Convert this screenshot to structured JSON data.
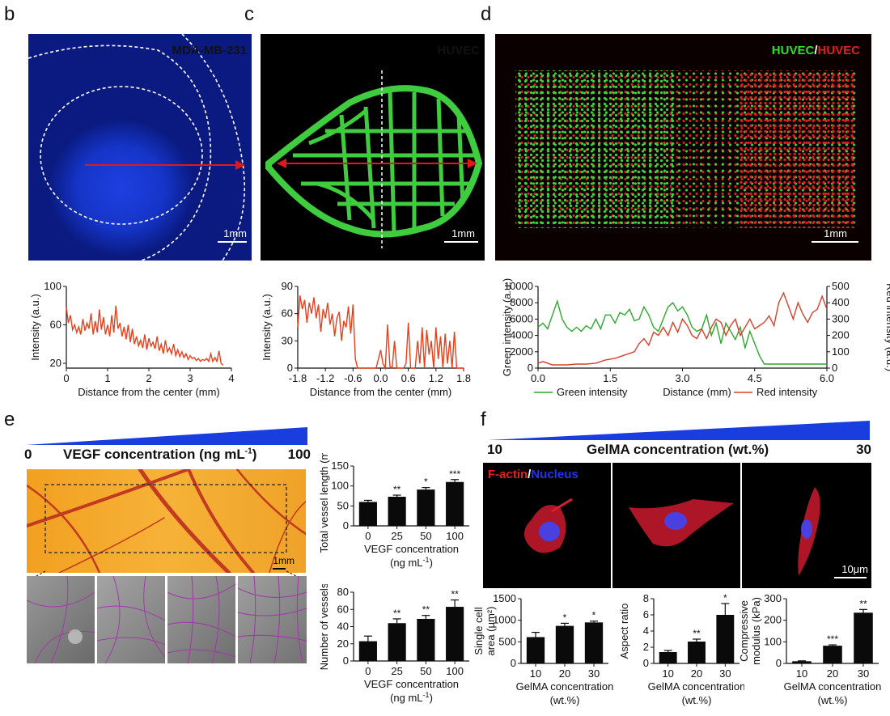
{
  "panel_labels": {
    "b": "b",
    "c": "c",
    "d": "d",
    "e": "e",
    "f": "f"
  },
  "images": {
    "b": {
      "stain": "MDA-MB-231",
      "scale": "1mm",
      "stain_color": "#2233ee"
    },
    "c": {
      "stain": "HUVEC",
      "scale": "1mm",
      "stain_color": "#33dd33"
    },
    "d": {
      "stain_green": "HUVEC",
      "stain_sep": "/",
      "stain_red": "HUVEC",
      "scale": "1mm"
    },
    "e_main": {
      "scale": "1mm"
    },
    "f": {
      "stain_red": "F-actin",
      "stain_sep": "/",
      "stain_blue": "Nucleus",
      "scale": "10μm"
    }
  },
  "gradients": {
    "e": {
      "label": "VEGF concentration (ng mL",
      "label_sup": "-1",
      "label_end": ")",
      "min": "0",
      "max": "100",
      "color": "#1a3de0"
    },
    "f": {
      "label": "GelMA concentration (wt.%)",
      "min": "10",
      "max": "30",
      "color": "#1a3de0"
    }
  },
  "chart_data": [
    {
      "id": "b",
      "type": "line",
      "xlabel": "Distance from the center (mm)",
      "ylabel": "Intensity (a.u.)",
      "xlim": [
        0,
        4
      ],
      "ylim": [
        15,
        100
      ],
      "xticks": [
        "0",
        "1",
        "2",
        "3",
        "4"
      ],
      "yticks": [
        "20",
        "60",
        "100"
      ],
      "series": [
        {
          "color": "#e8401a",
          "x": [
            0,
            0.05,
            0.1,
            0.15,
            0.2,
            0.25,
            0.3,
            0.35,
            0.4,
            0.45,
            0.5,
            0.55,
            0.6,
            0.65,
            0.7,
            0.75,
            0.8,
            0.85,
            0.9,
            0.95,
            1.0,
            1.05,
            1.1,
            1.15,
            1.2,
            1.25,
            1.3,
            1.35,
            1.4,
            1.45,
            1.5,
            1.55,
            1.6,
            1.65,
            1.7,
            1.75,
            1.8,
            1.85,
            1.9,
            1.95,
            2.0,
            2.05,
            2.1,
            2.15,
            2.2,
            2.25,
            2.3,
            2.35,
            2.4,
            2.45,
            2.5,
            2.55,
            2.6,
            2.65,
            2.7,
            2.75,
            2.8,
            2.85,
            2.9,
            2.95,
            3.0,
            3.05,
            3.1,
            3.15,
            3.2,
            3.25,
            3.3,
            3.35,
            3.4,
            3.45,
            3.5,
            3.55,
            3.6,
            3.65,
            3.7,
            3.75,
            3.8
          ],
          "y": [
            78,
            62,
            70,
            55,
            60,
            52,
            58,
            50,
            66,
            54,
            62,
            56,
            72,
            50,
            64,
            52,
            76,
            55,
            68,
            50,
            60,
            48,
            70,
            52,
            80,
            56,
            62,
            48,
            58,
            45,
            60,
            42,
            56,
            40,
            48,
            38,
            44,
            36,
            50,
            34,
            46,
            38,
            42,
            35,
            48,
            33,
            40,
            30,
            44,
            32,
            36,
            30,
            40,
            28,
            34,
            27,
            32,
            26,
            30,
            24,
            28,
            25,
            26,
            23,
            25,
            22,
            24,
            23,
            25,
            22,
            30,
            22,
            26,
            22,
            33,
            20,
            18
          ]
        }
      ]
    },
    {
      "id": "c",
      "type": "line",
      "xlabel": "Distance from the center (mm)",
      "ylabel": "Intensity (a.u.)",
      "xlim": [
        -1.8,
        1.8
      ],
      "ylim": [
        0,
        90
      ],
      "xticks": [
        "-1.8",
        "-1.2",
        "-0.6",
        "0.0",
        "0.6",
        "1.2",
        "1.8"
      ],
      "yticks": [
        "0",
        "30",
        "60",
        "90"
      ],
      "series": [
        {
          "color": "#e8401a",
          "x": [
            -1.8,
            -1.75,
            -1.7,
            -1.65,
            -1.6,
            -1.55,
            -1.5,
            -1.45,
            -1.4,
            -1.35,
            -1.3,
            -1.25,
            -1.2,
            -1.15,
            -1.1,
            -1.05,
            -1.0,
            -0.95,
            -0.9,
            -0.85,
            -0.8,
            -0.75,
            -0.7,
            -0.65,
            -0.6,
            -0.55,
            -0.5,
            -0.4,
            -0.3,
            -0.2,
            -0.1,
            -0.05,
            0.0,
            0.05,
            0.1,
            0.15,
            0.2,
            0.25,
            0.3,
            0.35,
            0.4,
            0.45,
            0.5,
            0.55,
            0.6,
            0.65,
            0.7,
            0.75,
            0.8,
            0.85,
            0.9,
            0.95,
            1.0,
            1.05,
            1.1,
            1.15,
            1.2,
            1.25,
            1.3,
            1.35,
            1.4,
            1.45,
            1.5,
            1.55,
            1.6,
            1.65,
            1.7,
            1.8
          ],
          "y": [
            45,
            80,
            65,
            75,
            50,
            72,
            60,
            78,
            55,
            70,
            40,
            65,
            55,
            72,
            48,
            60,
            35,
            55,
            62,
            30,
            52,
            45,
            68,
            38,
            70,
            10,
            0,
            0,
            0,
            0,
            0,
            10,
            20,
            5,
            0,
            48,
            2,
            0,
            30,
            0,
            0,
            0,
            0,
            5,
            50,
            0,
            0,
            0,
            30,
            5,
            45,
            0,
            42,
            15,
            30,
            0,
            45,
            10,
            35,
            0,
            38,
            5,
            30,
            0,
            40,
            0,
            0,
            0
          ]
        }
      ]
    },
    {
      "id": "d",
      "type": "line",
      "xlabel": "Distance (mm)",
      "ylabel": "Green intensity (a.u.)",
      "ylabel_right": "Red intensity (a.u.)",
      "xlim": [
        0,
        6
      ],
      "ylim": [
        0,
        10000
      ],
      "ylim_right": [
        0,
        500
      ],
      "xticks": [
        "0.0",
        "1.5",
        "3.0",
        "4.5",
        "6.0"
      ],
      "yticks": [
        "0",
        "2000",
        "4000",
        "6000",
        "8000",
        "10000"
      ],
      "yticks_right": [
        "0",
        "100",
        "200",
        "300",
        "400",
        "500"
      ],
      "series": [
        {
          "name": "Green intensity",
          "color": "#2ca82c",
          "axis": "left",
          "x": [
            0,
            0.1,
            0.2,
            0.3,
            0.4,
            0.5,
            0.6,
            0.7,
            0.8,
            0.9,
            1.0,
            1.1,
            1.2,
            1.3,
            1.4,
            1.5,
            1.6,
            1.7,
            1.8,
            1.9,
            2.0,
            2.1,
            2.2,
            2.3,
            2.4,
            2.5,
            2.6,
            2.7,
            2.8,
            2.9,
            3.0,
            3.1,
            3.2,
            3.3,
            3.4,
            3.5,
            3.6,
            3.7,
            3.8,
            3.9,
            4.0,
            4.1,
            4.2,
            4.3,
            4.4,
            4.5,
            4.6,
            4.7,
            4.8,
            5.0,
            5.5,
            6.0
          ],
          "y": [
            5000,
            5500,
            4800,
            6500,
            8200,
            6000,
            5000,
            4500,
            5000,
            4500,
            5200,
            4800,
            6000,
            4800,
            6500,
            6500,
            5500,
            6800,
            6500,
            7200,
            5800,
            6000,
            7500,
            6500,
            5000,
            4500,
            6000,
            7500,
            8000,
            7000,
            7500,
            6500,
            5000,
            4500,
            4800,
            6500,
            4000,
            5500,
            3000,
            5500,
            4500,
            3500,
            5000,
            2500,
            4500,
            3000,
            1500,
            500,
            500,
            500,
            500,
            500
          ]
        },
        {
          "name": "Red intensity",
          "color": "#d9402a",
          "axis": "right",
          "x": [
            0,
            0.1,
            0.2,
            0.3,
            0.4,
            0.6,
            0.8,
            1.0,
            1.2,
            1.4,
            1.6,
            1.8,
            2.0,
            2.1,
            2.2,
            2.3,
            2.4,
            2.5,
            2.6,
            2.7,
            2.8,
            2.9,
            3.0,
            3.1,
            3.2,
            3.3,
            3.4,
            3.5,
            3.6,
            3.7,
            3.8,
            3.9,
            4.0,
            4.1,
            4.2,
            4.3,
            4.4,
            4.5,
            4.6,
            4.7,
            4.8,
            4.9,
            5.0,
            5.1,
            5.2,
            5.3,
            5.4,
            5.5,
            5.6,
            5.7,
            5.8,
            5.9,
            6.0
          ],
          "y": [
            30,
            40,
            30,
            20,
            20,
            20,
            25,
            25,
            30,
            50,
            60,
            80,
            100,
            150,
            180,
            140,
            220,
            200,
            250,
            200,
            280,
            220,
            300,
            260,
            200,
            180,
            240,
            180,
            250,
            300,
            280,
            200,
            260,
            300,
            200,
            250,
            300,
            240,
            260,
            280,
            320,
            260,
            400,
            460,
            380,
            300,
            400,
            330,
            280,
            340,
            360,
            440,
            360
          ]
        }
      ],
      "legend": "bottom"
    },
    {
      "id": "e_length",
      "type": "bar",
      "xlabel": "VEGF concentration",
      "xlabel2": "(ng mL",
      "xlabel2_sup": "-1",
      "xlabel2_end": ")",
      "ylabel": "Total vessel length (mm)",
      "categories": [
        "0",
        "25",
        "50",
        "100"
      ],
      "values": [
        60,
        73,
        91,
        110
      ],
      "errors": [
        4,
        4,
        5,
        6
      ],
      "significance": [
        "",
        "**",
        "*",
        "***"
      ],
      "ylim": [
        0,
        150
      ],
      "yticks": [
        "0",
        "50",
        "100",
        "150"
      ]
    },
    {
      "id": "e_number",
      "type": "bar",
      "xlabel": "VEGF concentration",
      "xlabel2": "(ng mL",
      "xlabel2_sup": "-1",
      "xlabel2_end": ")",
      "ylabel": "Number of vessels",
      "categories": [
        "0",
        "25",
        "50",
        "100"
      ],
      "values": [
        23,
        44,
        49,
        63
      ],
      "errors": [
        6,
        5,
        4,
        8
      ],
      "significance": [
        "",
        "**",
        "**",
        "**"
      ],
      "ylim": [
        0,
        80
      ],
      "yticks": [
        "0",
        "20",
        "40",
        "60",
        "80"
      ]
    },
    {
      "id": "f_area",
      "type": "bar",
      "xlabel": "GelMA concentration",
      "xlabel2": "(wt.%)",
      "ylabel": "Single cell",
      "ylabel2": "area (μm²)",
      "categories": [
        "10",
        "20",
        "30"
      ],
      "values": [
        610,
        870,
        950
      ],
      "errors": [
        110,
        60,
        30
      ],
      "significance": [
        "",
        "*",
        "*"
      ],
      "ylim": [
        0,
        1500
      ],
      "yticks": [
        "0",
        "500",
        "1000",
        "1500"
      ]
    },
    {
      "id": "f_aspect",
      "type": "bar",
      "xlabel": "GelMA concentration",
      "xlabel2": "(wt.%)",
      "ylabel": "Aspect ratio",
      "categories": [
        "10",
        "20",
        "30"
      ],
      "values": [
        1.4,
        2.7,
        6.0
      ],
      "errors": [
        0.2,
        0.3,
        1.4
      ],
      "significance": [
        "",
        "**",
        "*"
      ],
      "ylim": [
        0,
        8
      ],
      "yticks": [
        "0",
        "2",
        "4",
        "6",
        "8"
      ]
    },
    {
      "id": "f_modulus",
      "type": "bar",
      "xlabel": "GelMA concentration",
      "xlabel2": "(wt.%)",
      "ylabel": "Compressive",
      "ylabel2": "modulus (kPa)",
      "categories": [
        "10",
        "20",
        "30"
      ],
      "values": [
        10,
        82,
        235
      ],
      "errors": [
        2,
        4,
        15
      ],
      "significance": [
        "",
        "***",
        "**"
      ],
      "ylim": [
        0,
        300
      ],
      "yticks": [
        "0",
        "100",
        "200",
        "300"
      ]
    }
  ]
}
